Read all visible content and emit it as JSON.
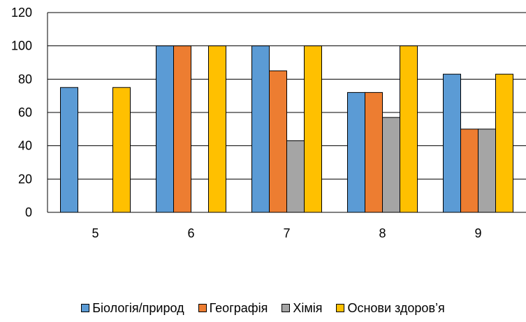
{
  "chart_data": {
    "type": "bar",
    "categories": [
      "5",
      "6",
      "7",
      "8",
      "9"
    ],
    "series": [
      {
        "name": "Біологія/природ",
        "color": "#5B9BD5",
        "values": [
          75,
          100,
          100,
          72,
          83
        ]
      },
      {
        "name": "Географія",
        "color": "#ED7D31",
        "values": [
          null,
          100,
          85,
          72,
          50
        ]
      },
      {
        "name": "Хімія",
        "color": "#A5A5A5",
        "values": [
          null,
          null,
          43,
          57,
          50
        ]
      },
      {
        "name": "Основи здоров’я",
        "color": "#FFC000",
        "values": [
          75,
          100,
          100,
          100,
          83
        ]
      }
    ],
    "ylim": [
      0,
      120
    ],
    "yticks": [
      "0",
      "20",
      "40",
      "60",
      "80",
      "100",
      "120"
    ],
    "grid": true,
    "legend": "bottom"
  }
}
